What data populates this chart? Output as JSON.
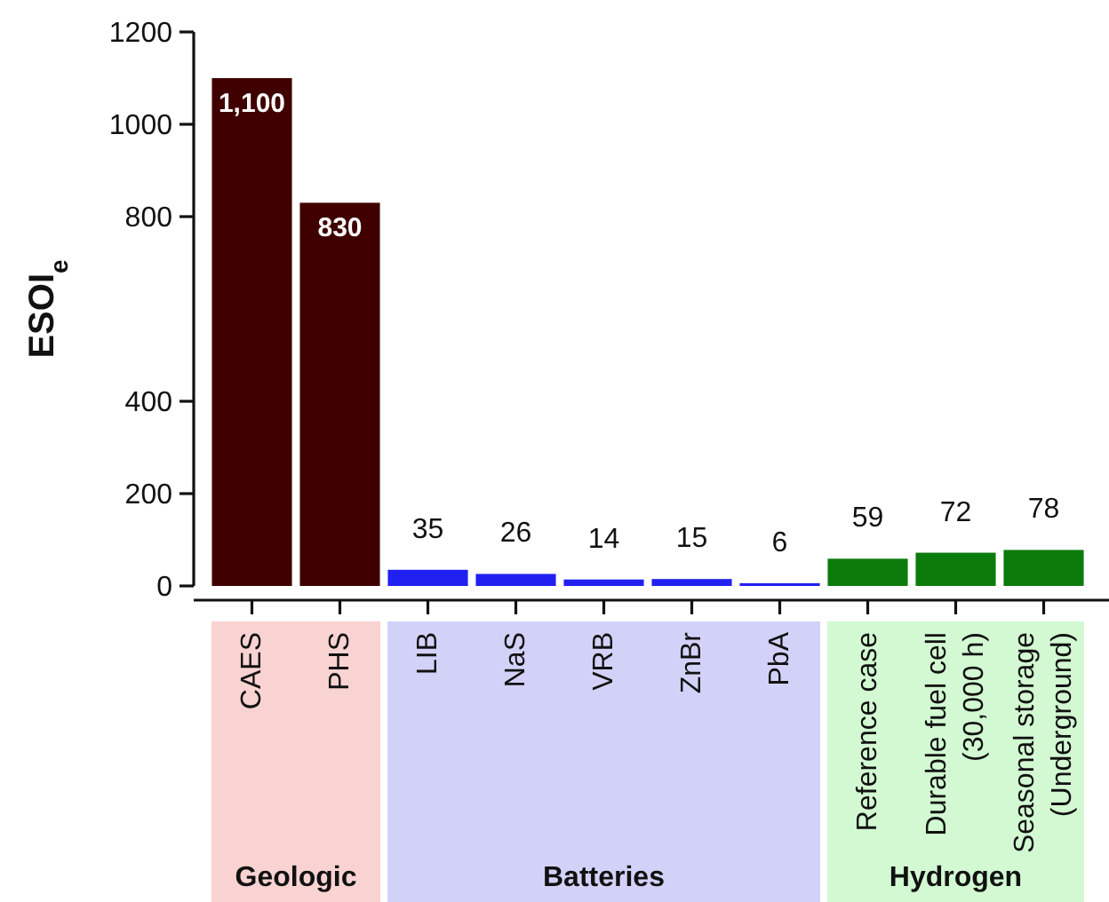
{
  "chart_data": {
    "type": "bar",
    "ylabel": "ESOI$_{e}$",
    "categories": [
      "CAES",
      "PHS",
      "LIB",
      "NaS",
      "VRB",
      "ZnBr",
      "PbA",
      "Reference case",
      "Durable fuel cell\n(30,000 h)",
      "Seasonal storage\n(Underground)"
    ],
    "values": [
      1100,
      830,
      35,
      26,
      14,
      15,
      6,
      59,
      72,
      78
    ],
    "colors": [
      "#400000",
      "#400000",
      "#2020f0",
      "#2020f0",
      "#2020f0",
      "#2020f0",
      "#2020f0",
      "#0b7b0b",
      "#0b7b0b",
      "#0b7b0b"
    ],
    "value_labels": [
      "1,100",
      "830",
      "35",
      "26",
      "14",
      "15",
      "6",
      "59",
      "72",
      "78"
    ],
    "ylim": [
      0,
      1200
    ],
    "yticks": [
      0,
      200,
      400,
      800,
      1000,
      1200
    ],
    "annotations": [
      "Geologic",
      "Batteries",
      "Hydrogen"
    ]
  }
}
